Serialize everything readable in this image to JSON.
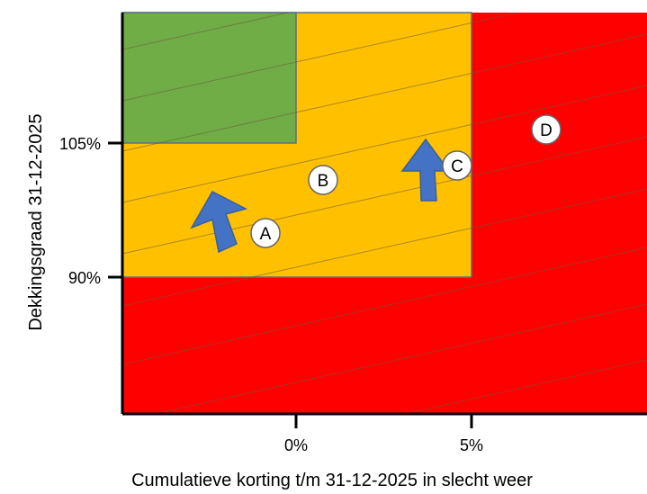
{
  "axes": {
    "y_title": "Dekkingsgraad 31-12-2025",
    "x_title": "Cumulatieve korting t/m 31-12-2025 in slecht weer",
    "y_ticks": [
      "105%",
      "90%"
    ],
    "x_ticks": [
      "0%",
      "5%"
    ]
  },
  "regions": [
    {
      "label": "B",
      "color": "#FFC000"
    },
    {
      "label": "D",
      "color": "#FF0000"
    },
    {
      "label": "green",
      "color": "#70AD47"
    }
  ],
  "markers": [
    {
      "label": "A"
    },
    {
      "label": "B"
    },
    {
      "label": "C"
    },
    {
      "label": "D"
    }
  ],
  "arrow_color": "#4472C4"
}
